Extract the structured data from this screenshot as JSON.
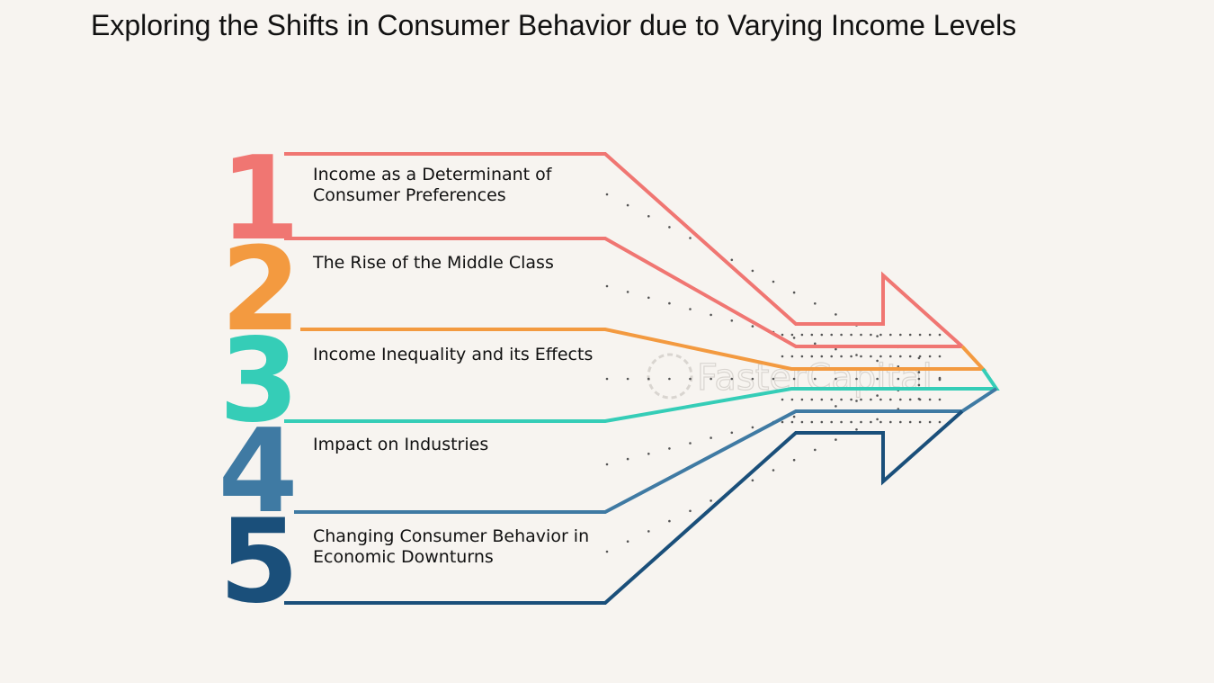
{
  "title": "Exploring the Shifts in Consumer Behavior due to Varying Income Levels",
  "watermark": "FasterCapital",
  "colors": {
    "background": "#f7f4f0",
    "step1": "#f07672",
    "step2": "#f39a40",
    "step3": "#35cdb7",
    "step4": "#3f7aa3",
    "step5": "#1a4f7a",
    "dots": "#555555"
  },
  "steps": [
    {
      "number": "1",
      "lines": [
        "Income as a Determinant of",
        "Consumer Preferences"
      ]
    },
    {
      "number": "2",
      "lines": [
        "The Rise of the Middle Class"
      ]
    },
    {
      "number": "3",
      "lines": [
        "Income Inequality and its Effects"
      ]
    },
    {
      "number": "4",
      "lines": [
        "Impact on Industries"
      ]
    },
    {
      "number": "5",
      "lines": [
        "Changing Consumer Behavior in",
        "Economic Downturns"
      ]
    }
  ]
}
